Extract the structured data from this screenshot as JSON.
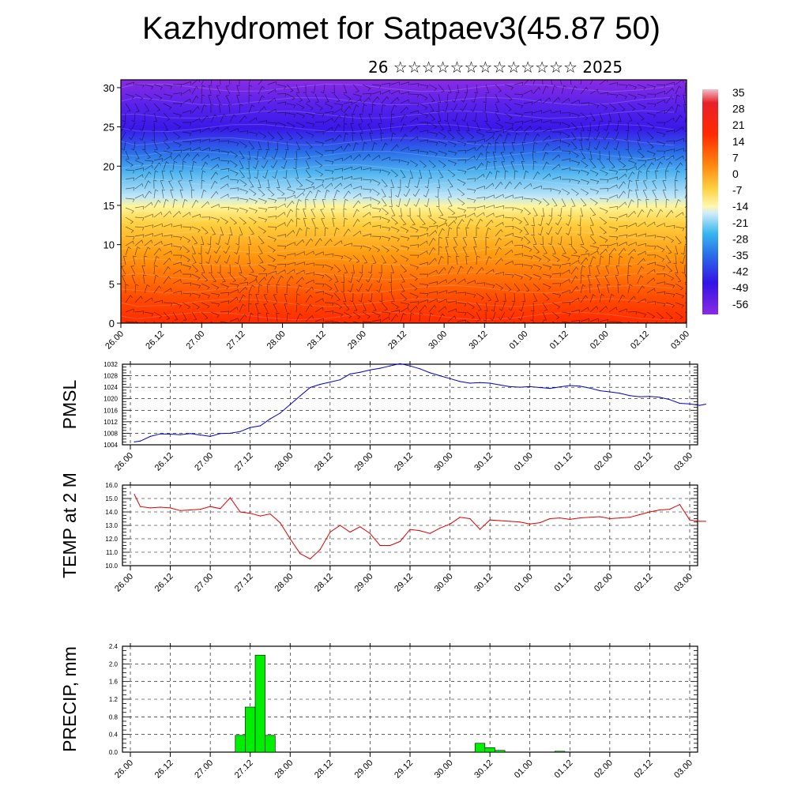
{
  "header": {
    "title": "Kazhydromet for Satpaev3(45.87 50)",
    "subtitle": "26 ☆☆☆☆☆☆☆☆☆☆☆☆☆ 2025"
  },
  "x_tick_labels": [
    "26.00",
    "26.12",
    "27.00",
    "27.12",
    "28.00",
    "28.12",
    "29.00",
    "29.12",
    "30.00",
    "30.12",
    "01.00",
    "01.12",
    "02.00",
    "02.12",
    "03.00"
  ],
  "chart_data": [
    {
      "type": "heatmap",
      "title": "",
      "xlabel": "",
      "ylabel": "",
      "x_range": [
        "26.00",
        "03.00"
      ],
      "yticks": [
        0,
        5,
        10,
        15,
        20,
        25,
        30
      ],
      "ylim": [
        0,
        31
      ],
      "colorbar_labels": [
        "35",
        "28",
        "21",
        "14",
        "7",
        "0",
        "-7",
        "-14",
        "-21",
        "-28",
        "-35",
        "-42",
        "-49",
        "-56"
      ],
      "colorbar_values": [
        35,
        28,
        21,
        14,
        7,
        0,
        -7,
        -14,
        -21,
        -28,
        -35,
        -42,
        -49,
        -56
      ],
      "overlay": "wind barbs",
      "colors": {
        "warm": "#ff2a00",
        "mid": "#fff59a",
        "cool": "#4fb4ef",
        "cold": "#3a18e8",
        "top": "#8a2be2"
      }
    },
    {
      "type": "line",
      "title": "",
      "xlabel": "",
      "ylabel": "PMSL",
      "ylim": [
        1004,
        1032
      ],
      "yticks": [
        "1004",
        "1008",
        "1012",
        "1016",
        "1020",
        "1024",
        "1028",
        "1032"
      ],
      "grid": true,
      "series": [
        {
          "color": "#0000cc",
          "x": [
            0.4,
            1,
            2,
            3,
            4,
            5,
            6,
            7,
            8,
            9,
            10,
            11,
            12,
            13,
            14,
            15,
            16,
            17,
            18,
            19,
            20,
            21,
            22,
            23,
            24,
            25,
            26,
            27,
            28,
            29,
            30,
            31,
            32,
            33,
            34,
            35,
            36,
            37,
            38,
            39,
            40,
            41,
            42,
            43,
            44,
            45,
            46,
            47,
            48,
            49,
            50,
            51,
            52,
            53,
            54,
            55,
            56,
            57,
            57.6
          ],
          "values": [
            1005,
            1005.3,
            1006.9,
            1007.8,
            1007.7,
            1007.5,
            1007.9,
            1007.4,
            1006.9,
            1007.9,
            1008,
            1008.6,
            1010,
            1010.6,
            1013,
            1015,
            1018,
            1021,
            1023.9,
            1025,
            1025.8,
            1026.6,
            1028.6,
            1029.2,
            1030,
            1030.6,
            1031.4,
            1032.2,
            1031.4,
            1030.4,
            1029,
            1028,
            1027,
            1026,
            1025.4,
            1025.6,
            1025.4,
            1024.8,
            1024.2,
            1024,
            1024.2,
            1023.9,
            1023.6,
            1024.1,
            1024.6,
            1024.4,
            1023.7,
            1022.8,
            1022.4,
            1021.9,
            1021.1,
            1020.7,
            1020.8,
            1020.5,
            1019.7,
            1018.4,
            1018.2,
            1017.7,
            1018.1
          ]
        }
      ]
    },
    {
      "type": "line",
      "title": "",
      "xlabel": "",
      "ylabel": "TEMP at 2 M",
      "ylim": [
        10.0,
        16.0
      ],
      "yticks": [
        "10.0",
        "11.0",
        "12.0",
        "13.0",
        "14.0",
        "15.0",
        "16.0"
      ],
      "grid": true,
      "series": [
        {
          "color": "#dd0000",
          "x": [
            0.4,
            1,
            2,
            3,
            4,
            5,
            6,
            7,
            8,
            9,
            10,
            11,
            12,
            13,
            14,
            15,
            16,
            17,
            18,
            19,
            20,
            21,
            22,
            23,
            24,
            25,
            26,
            27,
            28,
            29,
            30,
            31,
            32,
            33,
            34,
            35,
            36,
            37,
            38,
            39,
            40,
            41,
            42,
            43,
            44,
            45,
            46,
            47,
            48,
            49,
            50,
            51,
            52,
            53,
            54,
            55,
            56,
            57,
            57.6
          ],
          "values": [
            15.3,
            14.4,
            14.3,
            14.35,
            14.3,
            14.1,
            14.15,
            14.2,
            14.4,
            14.25,
            15.05,
            14.0,
            13.9,
            13.7,
            13.85,
            13.2,
            12.0,
            10.9,
            10.5,
            11.2,
            12.5,
            13.0,
            12.5,
            12.9,
            12.4,
            11.5,
            11.5,
            11.8,
            12.7,
            12.6,
            12.4,
            12.8,
            13.1,
            13.6,
            13.5,
            12.7,
            13.4,
            13.35,
            13.3,
            13.25,
            13.1,
            13.2,
            13.5,
            13.55,
            13.45,
            13.55,
            13.6,
            13.65,
            13.5,
            13.55,
            13.6,
            13.8,
            14.0,
            14.15,
            14.2,
            14.55,
            13.4,
            13.3,
            13.3
          ]
        }
      ]
    },
    {
      "type": "bar",
      "title": "",
      "xlabel": "",
      "ylabel": "PRECIP, mm",
      "ylim": [
        0.0,
        2.4
      ],
      "yticks": [
        "0.0",
        "0.4",
        "0.8",
        "1.2",
        "1.6",
        "2.0",
        "2.4"
      ],
      "grid": true,
      "color": "#00ee00",
      "series": [
        {
          "x": [
            11.0,
            12.0,
            13.0,
            14.0,
            35.0,
            36.0,
            37.0,
            43.0
          ],
          "values": [
            0.38,
            1.02,
            2.2,
            0.38,
            0.2,
            0.1,
            0.04,
            0.02
          ]
        }
      ]
    }
  ]
}
